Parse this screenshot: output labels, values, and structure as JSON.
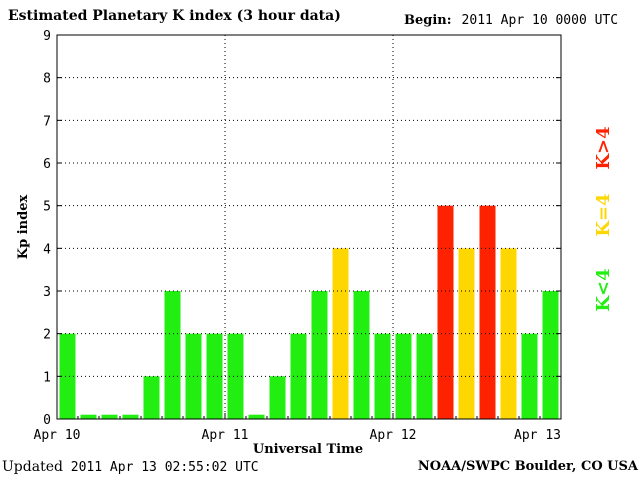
{
  "header": {
    "title": "Estimated Planetary K index (3 hour data)",
    "begin_label": "Begin:",
    "begin_value": "2011 Apr 10 0000 UTC"
  },
  "footer": {
    "updated_label": "Updated",
    "updated_value": "2011 Apr 13 02:55:02 UTC",
    "credit": "NOAA/SWPC Boulder, CO USA"
  },
  "legend": {
    "low": {
      "label": "K<4",
      "color": "#22ee11"
    },
    "mid": {
      "label": "K=4",
      "color": "#ffd700"
    },
    "high": {
      "label": "K>4",
      "color": "#ff2200"
    }
  },
  "chart_data": {
    "type": "bar",
    "title": "Estimated Planetary K index (3 hour data)",
    "xlabel": "Universal Time",
    "ylabel": "Kp index",
    "ylim": [
      0,
      9
    ],
    "y_ticks": [
      "0",
      "1",
      "2",
      "3",
      "4",
      "5",
      "6",
      "7",
      "8",
      "9"
    ],
    "x_ticks": [
      "Apr 10",
      "Apr 11",
      "Apr 12",
      "Apr 13"
    ],
    "grid": true,
    "interval_hours": 3,
    "values": [
      2,
      0,
      0,
      0,
      1,
      3,
      2,
      2,
      2,
      0,
      1,
      2,
      3,
      4,
      3,
      2,
      2,
      2,
      5,
      4,
      5,
      4,
      2,
      3
    ],
    "colors": {
      "low": "#22ee11",
      "mid": "#ffd700",
      "high": "#ff2200"
    }
  }
}
